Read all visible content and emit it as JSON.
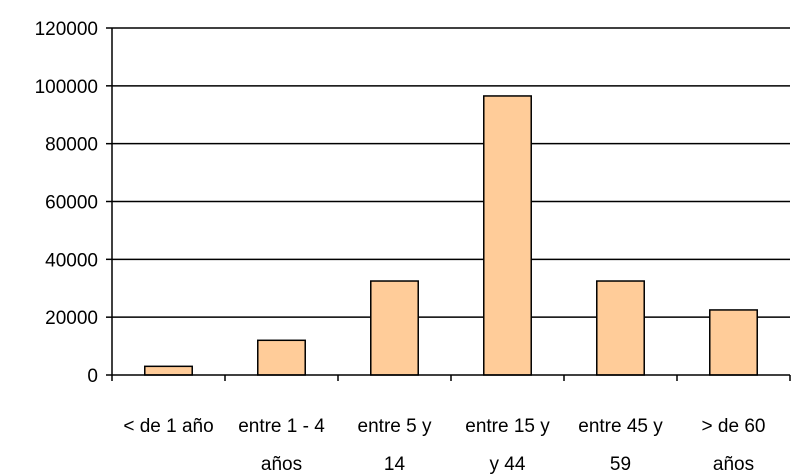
{
  "chart_data": {
    "type": "bar",
    "title": "",
    "xlabel": "",
    "ylabel": "",
    "categories": [
      [
        "< de 1 año"
      ],
      [
        "entre 1 - 4",
        "años"
      ],
      [
        "entre 5 y",
        "14"
      ],
      [
        "entre 15 y",
        "y 44"
      ],
      [
        "entre 45 y",
        "59"
      ],
      [
        "> de 60",
        "años"
      ]
    ],
    "values": [
      3000,
      12000,
      32500,
      96500,
      32500,
      22500
    ],
    "ylim": [
      0,
      120000
    ],
    "yticks": [
      0,
      20000,
      40000,
      60000,
      80000,
      100000,
      120000
    ],
    "grid": true,
    "legend": "none",
    "colors": {
      "bar_fill": "#FFCC99",
      "bar_stroke": "#000000",
      "gridline": "#000000",
      "axis": "#000000"
    }
  }
}
